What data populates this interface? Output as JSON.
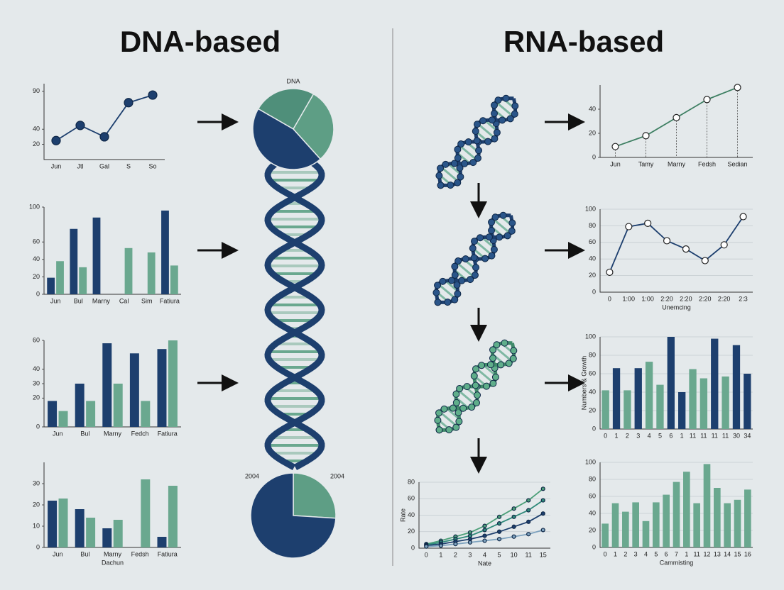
{
  "headings": {
    "left": "DNA-based",
    "right": "RNA-based"
  },
  "chart_data": [
    {
      "type": "line",
      "categories": [
        "Jun",
        "Jtl",
        "Gal",
        "S",
        "So"
      ],
      "values": [
        25,
        45,
        30,
        75,
        85
      ],
      "color": "#1d3f6e",
      "marker": "filled",
      "ylim": [
        0,
        100
      ],
      "yticks": [
        20,
        40,
        90
      ]
    },
    {
      "type": "bar",
      "categories": [
        "Jun",
        "Bul",
        "Marny",
        "Cal",
        "Sim",
        "Fatiura"
      ],
      "series": [
        {
          "color": "#1d3f6e",
          "values": [
            19,
            75,
            88,
            null,
            null,
            96
          ]
        },
        {
          "color": "#6aa88f",
          "values": [
            38,
            31,
            null,
            53,
            48,
            33
          ]
        }
      ],
      "ylim": [
        0,
        100
      ],
      "yticks": [
        0,
        20,
        40,
        60,
        100
      ]
    },
    {
      "type": "bar",
      "categories": [
        "Jun",
        "Bul",
        "Marny",
        "Fedch",
        "Fatiura"
      ],
      "series": [
        {
          "color": "#1d3f6e",
          "values": [
            18,
            30,
            58,
            51,
            54
          ]
        },
        {
          "color": "#6aa88f",
          "values": [
            11,
            18,
            30,
            18,
            60
          ]
        }
      ],
      "ylim": [
        0,
        60
      ],
      "yticks": [
        0,
        20,
        30,
        40,
        60
      ]
    },
    {
      "type": "bar",
      "categories": [
        "Jun",
        "Bul",
        "Marny",
        "Fedsh",
        "Fatiura"
      ],
      "xlabel": "Dachun",
      "series": [
        {
          "color": "#1d3f6e",
          "values": [
            22,
            18,
            9,
            null,
            5
          ]
        },
        {
          "color": "#6aa88f",
          "values": [
            23,
            14,
            13,
            32,
            29
          ]
        }
      ],
      "ylim": [
        0,
        40
      ],
      "yticks": [
        0,
        10,
        20,
        30
      ]
    },
    {
      "type": "pie",
      "title": "DNA",
      "values": [
        25,
        30,
        45
      ],
      "colors": [
        "#4f8f7a",
        "#5e9e85",
        "#1d3f6e"
      ]
    },
    {
      "type": "pie",
      "annotations": [
        "2004",
        "2004"
      ],
      "values": [
        26,
        74
      ],
      "colors": [
        "#5e9e85",
        "#1d3f6e"
      ]
    },
    {
      "type": "line",
      "categories": [
        "Jun",
        "Tamy",
        "Marny",
        "Fedsh",
        "Sedian"
      ],
      "values": [
        9,
        18,
        33,
        48,
        58
      ],
      "color": "#3d7f62",
      "marker": "hollow",
      "drop_lines": true,
      "ylim": [
        0,
        60
      ],
      "yticks": [
        0,
        20,
        40
      ]
    },
    {
      "type": "line",
      "categories": [
        "0",
        "1:00",
        "1:00",
        "2:20",
        "2:20",
        "2:20",
        "2:20",
        "2:3"
      ],
      "xlabel": "Unemcing",
      "values": [
        24,
        79,
        83,
        62,
        52,
        38,
        57,
        91
      ],
      "color": "#1d3f6e",
      "marker": "hollow",
      "grid": true,
      "ylim": [
        0,
        100
      ],
      "yticks": [
        0,
        20,
        40,
        60,
        80,
        100
      ]
    },
    {
      "type": "bar",
      "categories": [
        "0",
        "1",
        "2",
        "3",
        "4",
        "5",
        "6",
        "1",
        "11",
        "11",
        "11",
        "11",
        "30",
        "34"
      ],
      "ylabel": "Numbers & Growth",
      "values": [
        42,
        66,
        42,
        66,
        73,
        48,
        100,
        40,
        65,
        55,
        98,
        57,
        91,
        60
      ],
      "colors": [
        "#6aa88f",
        "#1d3f6e",
        "#6aa88f",
        "#1d3f6e",
        "#6aa88f",
        "#6aa88f",
        "#1d3f6e",
        "#1d3f6e",
        "#6aa88f",
        "#6aa88f",
        "#1d3f6e",
        "#6aa88f",
        "#1d3f6e",
        "#1d3f6e"
      ],
      "grid": true,
      "ylim": [
        0,
        100
      ],
      "yticks": [
        0,
        20,
        40,
        60,
        80,
        100
      ]
    },
    {
      "type": "line",
      "categories": [
        "0",
        "1",
        "2",
        "3",
        "4",
        "5",
        "10",
        "11",
        "15"
      ],
      "xlabel": "Nate",
      "ylabel": "Rate",
      "marker": "filled",
      "grid": true,
      "series": [
        {
          "color": "#4c9f78",
          "values": [
            5,
            9,
            14,
            19,
            27,
            38,
            48,
            58,
            72
          ]
        },
        {
          "color": "#2f8a7a",
          "values": [
            4,
            7,
            11,
            15,
            22,
            30,
            38,
            46,
            58
          ]
        },
        {
          "color": "#1d3f6e",
          "values": [
            3,
            5,
            8,
            11,
            15,
            20,
            26,
            32,
            42
          ]
        },
        {
          "color": "#7ea3bf",
          "values": [
            2,
            3,
            5,
            7,
            9,
            11,
            14,
            17,
            22
          ]
        }
      ],
      "ylim": [
        0,
        80
      ],
      "yticks": [
        0,
        20,
        40,
        60,
        80
      ]
    },
    {
      "type": "bar",
      "categories": [
        "0",
        "1",
        "2",
        "3",
        "4",
        "5",
        "6",
        "7",
        "1",
        "11",
        "12",
        "13",
        "14",
        "15",
        "16"
      ],
      "xlabel": "Cammisting",
      "values": [
        28,
        52,
        42,
        53,
        31,
        53,
        62,
        77,
        89,
        52,
        98,
        70,
        52,
        56,
        68
      ],
      "color": "#6aa88f",
      "grid": true,
      "ylim": [
        0,
        100
      ],
      "yticks": [
        0,
        20,
        40,
        60,
        80,
        100
      ]
    }
  ]
}
